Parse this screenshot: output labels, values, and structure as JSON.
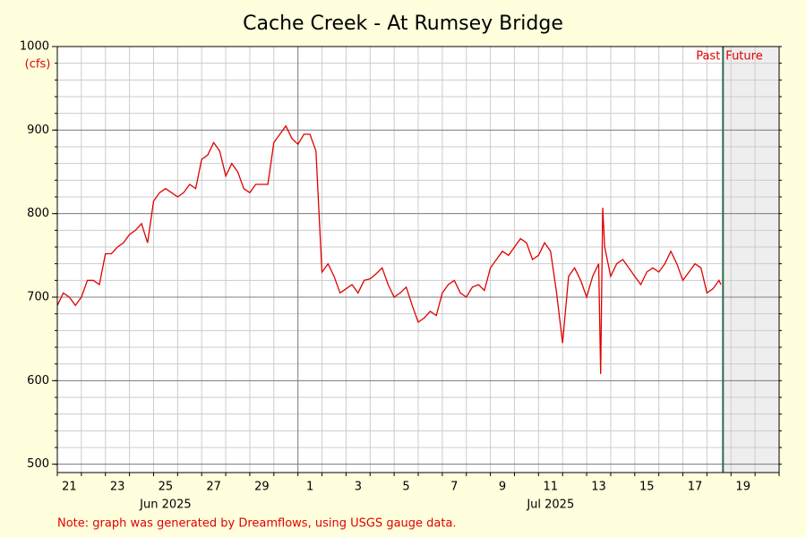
{
  "chart_data": {
    "type": "line",
    "title": "Cache Creek - At Rumsey Bridge",
    "ylabel": "(cfs)",
    "note": "Note: graph was generated by Dreamflows, using USGS gauge data.",
    "color": "#e00000",
    "xlim": [
      "2025-06-21",
      "2025-07-21"
    ],
    "ylim": [
      490,
      1000
    ],
    "yticks": [
      500,
      600,
      700,
      800,
      900,
      1000
    ],
    "yminor": [
      500,
      520,
      540,
      560,
      580,
      600,
      620,
      640,
      660,
      680,
      700,
      720,
      740,
      760,
      780,
      800,
      820,
      840,
      860,
      880,
      900,
      920,
      940,
      960,
      980,
      1000
    ],
    "xticks": [
      {
        "value": "2025-06-21",
        "label": "21"
      },
      {
        "value": "2025-06-23",
        "label": "23"
      },
      {
        "value": "2025-06-25",
        "label": "25"
      },
      {
        "value": "2025-06-27",
        "label": "27"
      },
      {
        "value": "2025-06-29",
        "label": "29"
      },
      {
        "value": "2025-07-01",
        "label": "1"
      },
      {
        "value": "2025-07-03",
        "label": "3"
      },
      {
        "value": "2025-07-05",
        "label": "5"
      },
      {
        "value": "2025-07-07",
        "label": "7"
      },
      {
        "value": "2025-07-09",
        "label": "9"
      },
      {
        "value": "2025-07-11",
        "label": "11"
      },
      {
        "value": "2025-07-13",
        "label": "13"
      },
      {
        "value": "2025-07-15",
        "label": "15"
      },
      {
        "value": "2025-07-17",
        "label": "17"
      },
      {
        "value": "2025-07-19",
        "label": "19"
      }
    ],
    "xminor": [
      "2025-06-21",
      "2025-06-22",
      "2025-06-23",
      "2025-06-24",
      "2025-06-25",
      "2025-06-26",
      "2025-06-27",
      "2025-06-28",
      "2025-06-29",
      "2025-06-30",
      "2025-07-01",
      "2025-07-02",
      "2025-07-03",
      "2025-07-04",
      "2025-07-05",
      "2025-07-06",
      "2025-07-07",
      "2025-07-08",
      "2025-07-09",
      "2025-07-10",
      "2025-07-11",
      "2025-07-12",
      "2025-07-13",
      "2025-07-14",
      "2025-07-15",
      "2025-07-16",
      "2025-07-17",
      "2025-07-18",
      "2025-07-19",
      "2025-07-20",
      "2025-07-21"
    ],
    "xmajor": [
      "2025-07-01"
    ],
    "month_labels": [
      {
        "value": "2025-06-25",
        "label": "Jun 2025"
      },
      {
        "value": "2025-07-11",
        "label": "Jul 2025"
      }
    ],
    "now": "2025-07-18T16:00",
    "past_label": "Past",
    "future_label": "Future",
    "x": [
      "2025-06-21T00:00",
      "2025-06-21T06:00",
      "2025-06-21T12:00",
      "2025-06-21T18:00",
      "2025-06-22T00:00",
      "2025-06-22T06:00",
      "2025-06-22T12:00",
      "2025-06-22T18:00",
      "2025-06-23T00:00",
      "2025-06-23T06:00",
      "2025-06-23T12:00",
      "2025-06-23T18:00",
      "2025-06-24T00:00",
      "2025-06-24T06:00",
      "2025-06-24T12:00",
      "2025-06-24T18:00",
      "2025-06-25T00:00",
      "2025-06-25T06:00",
      "2025-06-25T12:00",
      "2025-06-25T18:00",
      "2025-06-26T00:00",
      "2025-06-26T06:00",
      "2025-06-26T12:00",
      "2025-06-26T18:00",
      "2025-06-27T00:00",
      "2025-06-27T06:00",
      "2025-06-27T12:00",
      "2025-06-27T18:00",
      "2025-06-28T00:00",
      "2025-06-28T06:00",
      "2025-06-28T12:00",
      "2025-06-28T18:00",
      "2025-06-29T00:00",
      "2025-06-29T06:00",
      "2025-06-29T12:00",
      "2025-06-29T18:00",
      "2025-06-30T00:00",
      "2025-06-30T06:00",
      "2025-06-30T12:00",
      "2025-06-30T18:00",
      "2025-07-01T00:00",
      "2025-07-01T06:00",
      "2025-07-01T12:00",
      "2025-07-01T18:00",
      "2025-07-02T00:00",
      "2025-07-02T06:00",
      "2025-07-02T12:00",
      "2025-07-02T18:00",
      "2025-07-03T00:00",
      "2025-07-03T06:00",
      "2025-07-03T12:00",
      "2025-07-03T18:00",
      "2025-07-04T00:00",
      "2025-07-04T06:00",
      "2025-07-04T12:00",
      "2025-07-04T18:00",
      "2025-07-05T00:00",
      "2025-07-05T06:00",
      "2025-07-05T12:00",
      "2025-07-05T18:00",
      "2025-07-06T00:00",
      "2025-07-06T06:00",
      "2025-07-06T12:00",
      "2025-07-06T18:00",
      "2025-07-07T00:00",
      "2025-07-07T06:00",
      "2025-07-07T12:00",
      "2025-07-07T18:00",
      "2025-07-08T00:00",
      "2025-07-08T06:00",
      "2025-07-08T12:00",
      "2025-07-08T18:00",
      "2025-07-09T00:00",
      "2025-07-09T06:00",
      "2025-07-09T12:00",
      "2025-07-09T18:00",
      "2025-07-10T00:00",
      "2025-07-10T06:00",
      "2025-07-10T12:00",
      "2025-07-10T18:00",
      "2025-07-11T00:00",
      "2025-07-11T06:00",
      "2025-07-11T12:00",
      "2025-07-11T18:00",
      "2025-07-12T00:00",
      "2025-07-12T06:00",
      "2025-07-12T12:00",
      "2025-07-12T18:00",
      "2025-07-13T00:00",
      "2025-07-13T06:00",
      "2025-07-13T12:00",
      "2025-07-13T14:00",
      "2025-07-13T16:00",
      "2025-07-13T18:00",
      "2025-07-14T00:00",
      "2025-07-14T06:00",
      "2025-07-14T12:00",
      "2025-07-14T18:00",
      "2025-07-15T00:00",
      "2025-07-15T06:00",
      "2025-07-15T12:00",
      "2025-07-15T18:00",
      "2025-07-16T00:00",
      "2025-07-16T06:00",
      "2025-07-16T12:00",
      "2025-07-16T18:00",
      "2025-07-17T00:00",
      "2025-07-17T06:00",
      "2025-07-17T12:00",
      "2025-07-17T18:00",
      "2025-07-18T00:00",
      "2025-07-18T06:00",
      "2025-07-18T12:00",
      "2025-07-18T14:00"
    ],
    "values": [
      690,
      705,
      700,
      690,
      700,
      720,
      720,
      715,
      752,
      752,
      760,
      765,
      775,
      780,
      788,
      765,
      815,
      825,
      830,
      825,
      820,
      825,
      835,
      830,
      865,
      870,
      885,
      875,
      845,
      860,
      850,
      830,
      825,
      835,
      835,
      835,
      885,
      895,
      905,
      890,
      883,
      895,
      895,
      875,
      730,
      740,
      725,
      705,
      710,
      715,
      705,
      720,
      722,
      728,
      735,
      715,
      700,
      705,
      712,
      690,
      670,
      675,
      683,
      678,
      705,
      715,
      720,
      705,
      700,
      712,
      715,
      708,
      735,
      745,
      755,
      750,
      760,
      770,
      765,
      745,
      750,
      765,
      755,
      705,
      645,
      725,
      735,
      720,
      700,
      725,
      740,
      608,
      807,
      760,
      725,
      740,
      745,
      735,
      725,
      715,
      730,
      735,
      730,
      740,
      755,
      740,
      720,
      730,
      740,
      735,
      705,
      710,
      720,
      715
    ]
  }
}
